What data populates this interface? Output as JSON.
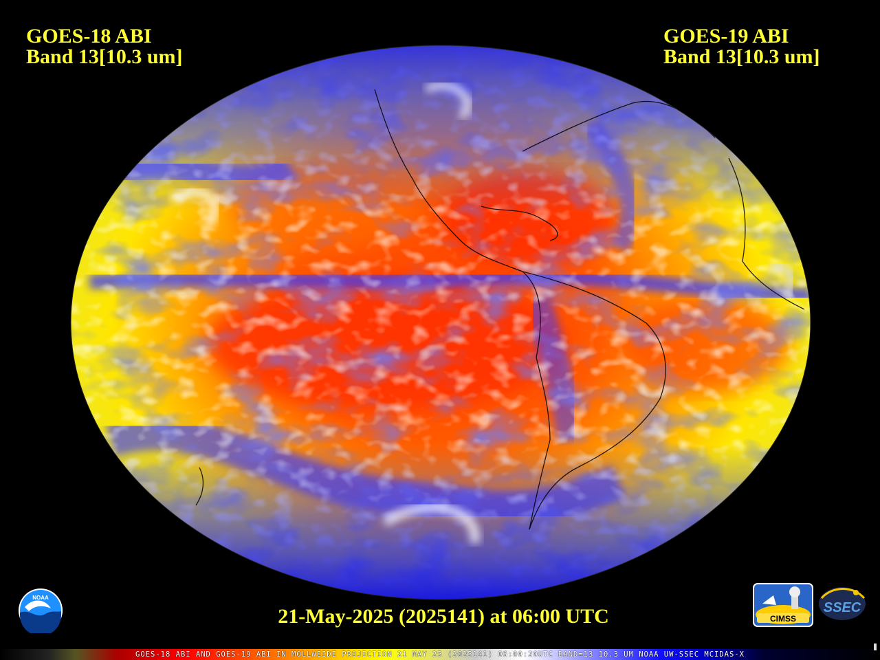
{
  "header": {
    "left_title": "GOES-18 ABI",
    "left_band": "Band 13[10.3 um]",
    "right_title": "GOES-19 ABI",
    "right_band": "Band 13[10.3 um]"
  },
  "timestamp": "21-May-2025 (2025141) at 06:00 UTC",
  "footer": "GOES-18 ABI AND GOES-19 ABI IN MOLLWEIDE PROJECTION 21 MAY 25 (2025141) 06:00:20UTC BAND=13 10.3 UM NOAA UW-SSEC MCIDAS-X",
  "logos": {
    "noaa": "NOAA",
    "cimss": "CIMSS",
    "ssec": "SSEC"
  },
  "colors": {
    "label_yellow": "#ffff33",
    "background": "#000000",
    "cold_cloud": "#1a1aff",
    "high_cloud": "#ffffff",
    "mid_cloud": "#ffff00",
    "warm_surface": "#ff3300"
  },
  "icons": [
    "noaa-logo-icon",
    "cimss-logo-icon",
    "ssec-logo-icon"
  ]
}
